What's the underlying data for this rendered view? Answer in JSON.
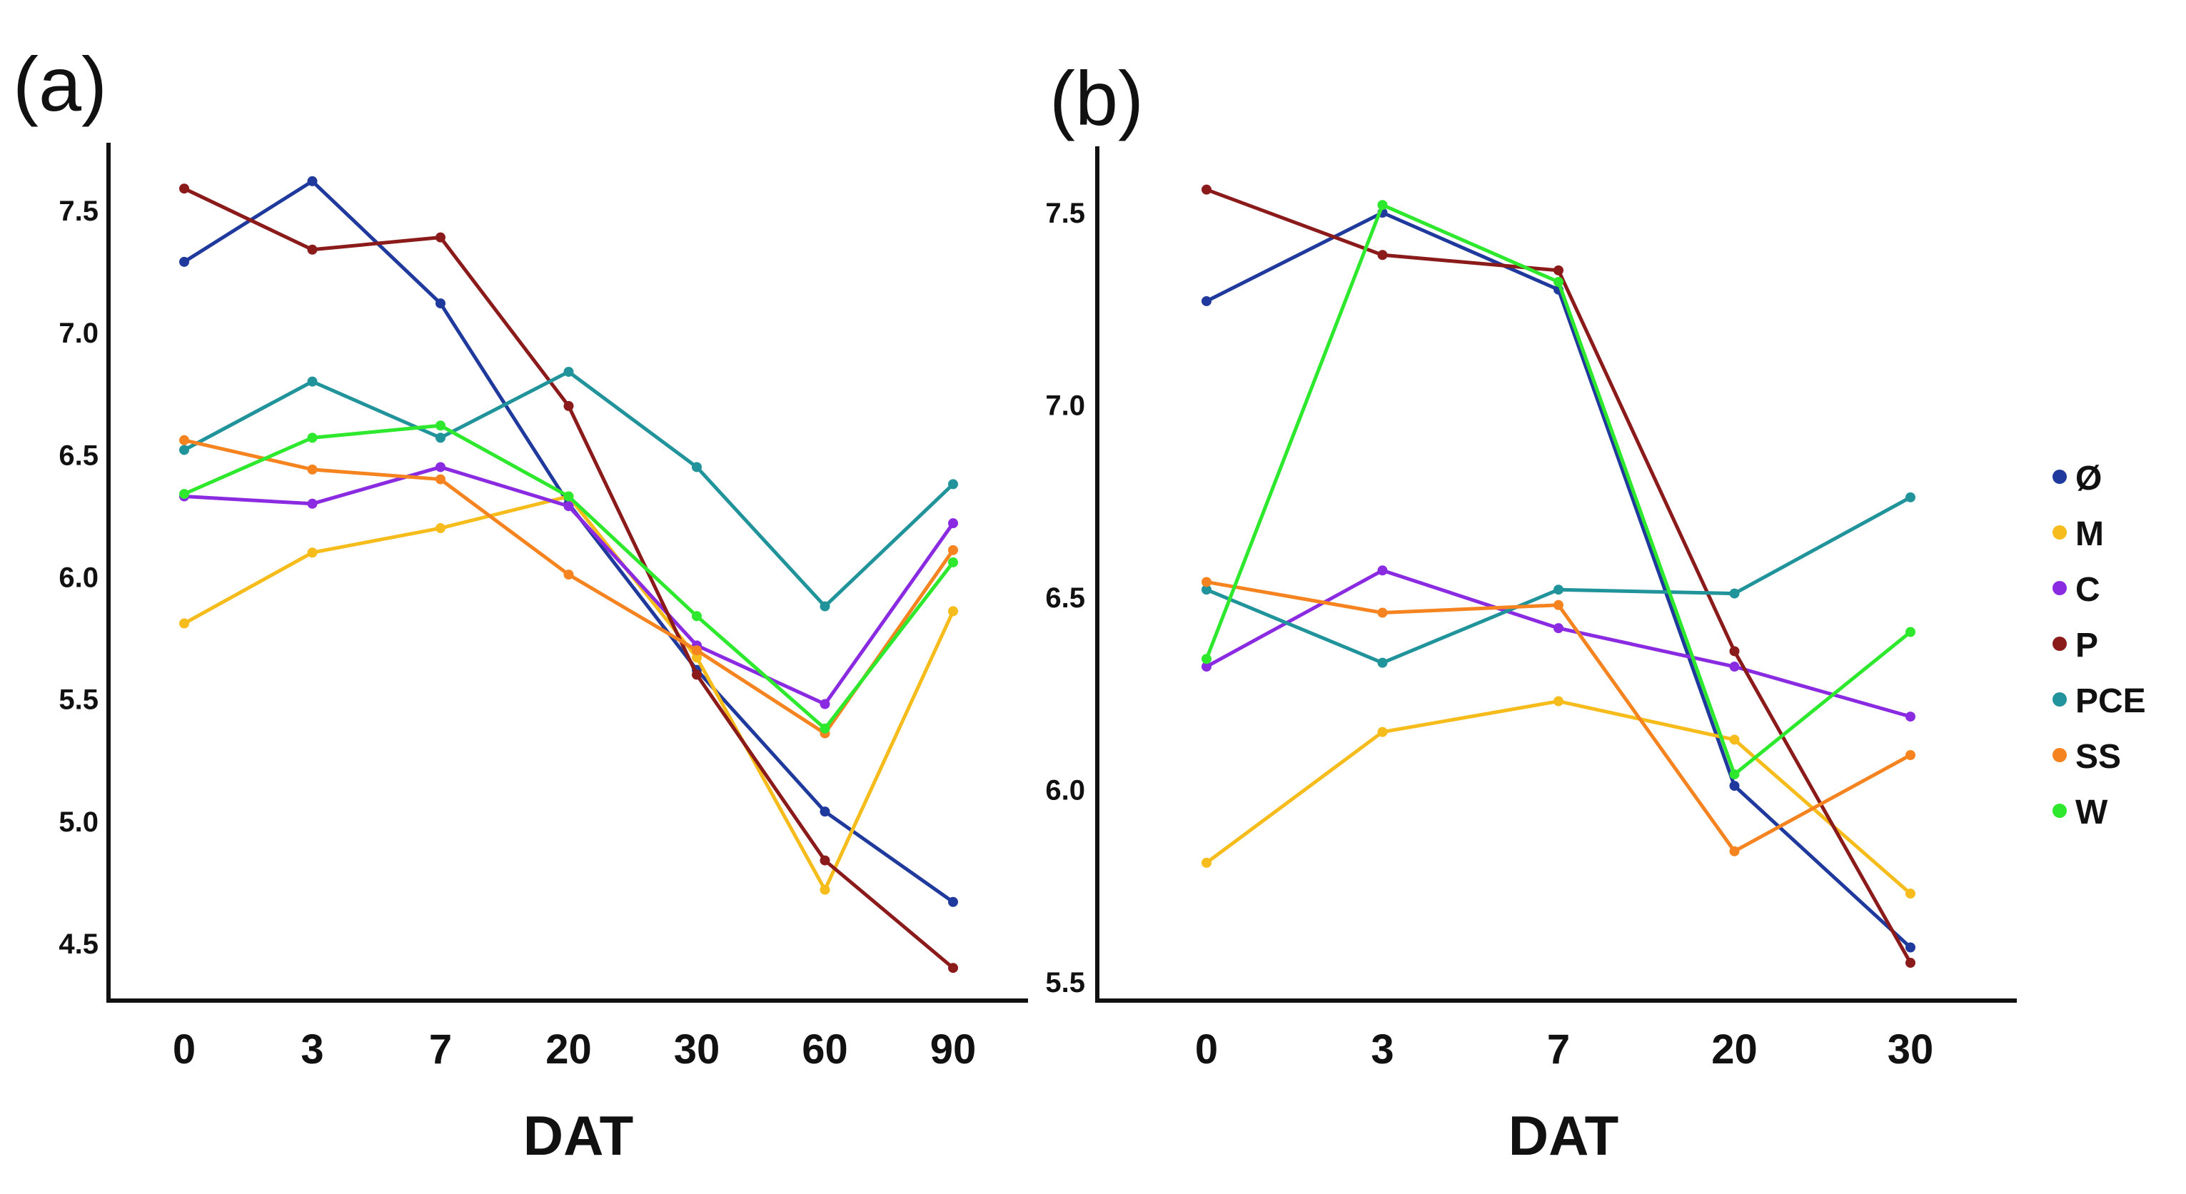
{
  "chart_data": [
    {
      "type": "line",
      "panel_label": "(a)",
      "xlabel": "DAT",
      "ylabel": "",
      "categories": [
        "0",
        "3",
        "7",
        "20",
        "30",
        "60",
        "90"
      ],
      "ylim": [
        4.35,
        7.8
      ],
      "yticks": [
        "4.5",
        "5.0",
        "5.5",
        "6.0",
        "6.5",
        "7.0",
        "7.5"
      ],
      "series": [
        {
          "name": "Ø",
          "color": "#1f3a9c",
          "values": [
            7.29,
            7.62,
            7.12,
            6.3,
            5.62,
            5.04,
            4.67
          ]
        },
        {
          "name": "M",
          "color": "#f5bc1c",
          "values": [
            5.81,
            6.1,
            6.2,
            6.33,
            5.67,
            4.72,
            5.86
          ]
        },
        {
          "name": "C",
          "color": "#8a2be2",
          "values": [
            6.33,
            6.3,
            6.45,
            6.29,
            5.72,
            5.48,
            6.22
          ]
        },
        {
          "name": "P",
          "color": "#8b1a1a",
          "values": [
            7.59,
            7.34,
            7.39,
            6.7,
            5.6,
            4.84,
            4.4
          ]
        },
        {
          "name": "PCE",
          "color": "#21939a",
          "values": [
            6.52,
            6.8,
            6.57,
            6.84,
            6.45,
            5.88,
            6.38
          ]
        },
        {
          "name": "SS",
          "color": "#f58420",
          "values": [
            6.56,
            6.44,
            6.4,
            6.01,
            5.7,
            5.36,
            6.11
          ]
        },
        {
          "name": "W",
          "color": "#2ee82e",
          "values": [
            6.34,
            6.57,
            6.62,
            6.33,
            5.84,
            5.38,
            6.06
          ]
        }
      ]
    },
    {
      "type": "line",
      "panel_label": "(b)",
      "xlabel": "DAT",
      "ylabel": "",
      "categories": [
        "0",
        "3",
        "7",
        "20",
        "30"
      ],
      "ylim": [
        5.45,
        7.65
      ],
      "yticks": [
        "5.5",
        "6.0",
        "6.5",
        "7.0",
        "7.5"
      ],
      "series": [
        {
          "name": "Ø",
          "color": "#1f3a9c",
          "values": [
            7.27,
            7.5,
            7.3,
            6.01,
            5.59
          ]
        },
        {
          "name": "M",
          "color": "#f5bc1c",
          "values": [
            5.81,
            6.15,
            6.23,
            6.13,
            5.73
          ]
        },
        {
          "name": "C",
          "color": "#8a2be2",
          "values": [
            6.32,
            6.57,
            6.42,
            6.32,
            6.19
          ]
        },
        {
          "name": "P",
          "color": "#8b1a1a",
          "values": [
            7.56,
            7.39,
            7.35,
            6.36,
            5.55
          ]
        },
        {
          "name": "PCE",
          "color": "#21939a",
          "values": [
            6.52,
            6.33,
            6.52,
            6.51,
            6.76
          ]
        },
        {
          "name": "SS",
          "color": "#f58420",
          "values": [
            6.54,
            6.46,
            6.48,
            5.84,
            6.09
          ]
        },
        {
          "name": "W",
          "color": "#2ee82e",
          "values": [
            6.34,
            7.52,
            7.32,
            6.04,
            6.41
          ]
        }
      ]
    }
  ],
  "legend": {
    "placement": "right",
    "items": [
      {
        "label": "Ø",
        "color": "#1f3a9c"
      },
      {
        "label": "M",
        "color": "#f5bc1c"
      },
      {
        "label": "C",
        "color": "#8a2be2"
      },
      {
        "label": "P",
        "color": "#8b1a1a"
      },
      {
        "label": "PCE",
        "color": "#21939a"
      },
      {
        "label": "SS",
        "color": "#f58420"
      },
      {
        "label": "W",
        "color": "#2ee82e"
      }
    ]
  }
}
